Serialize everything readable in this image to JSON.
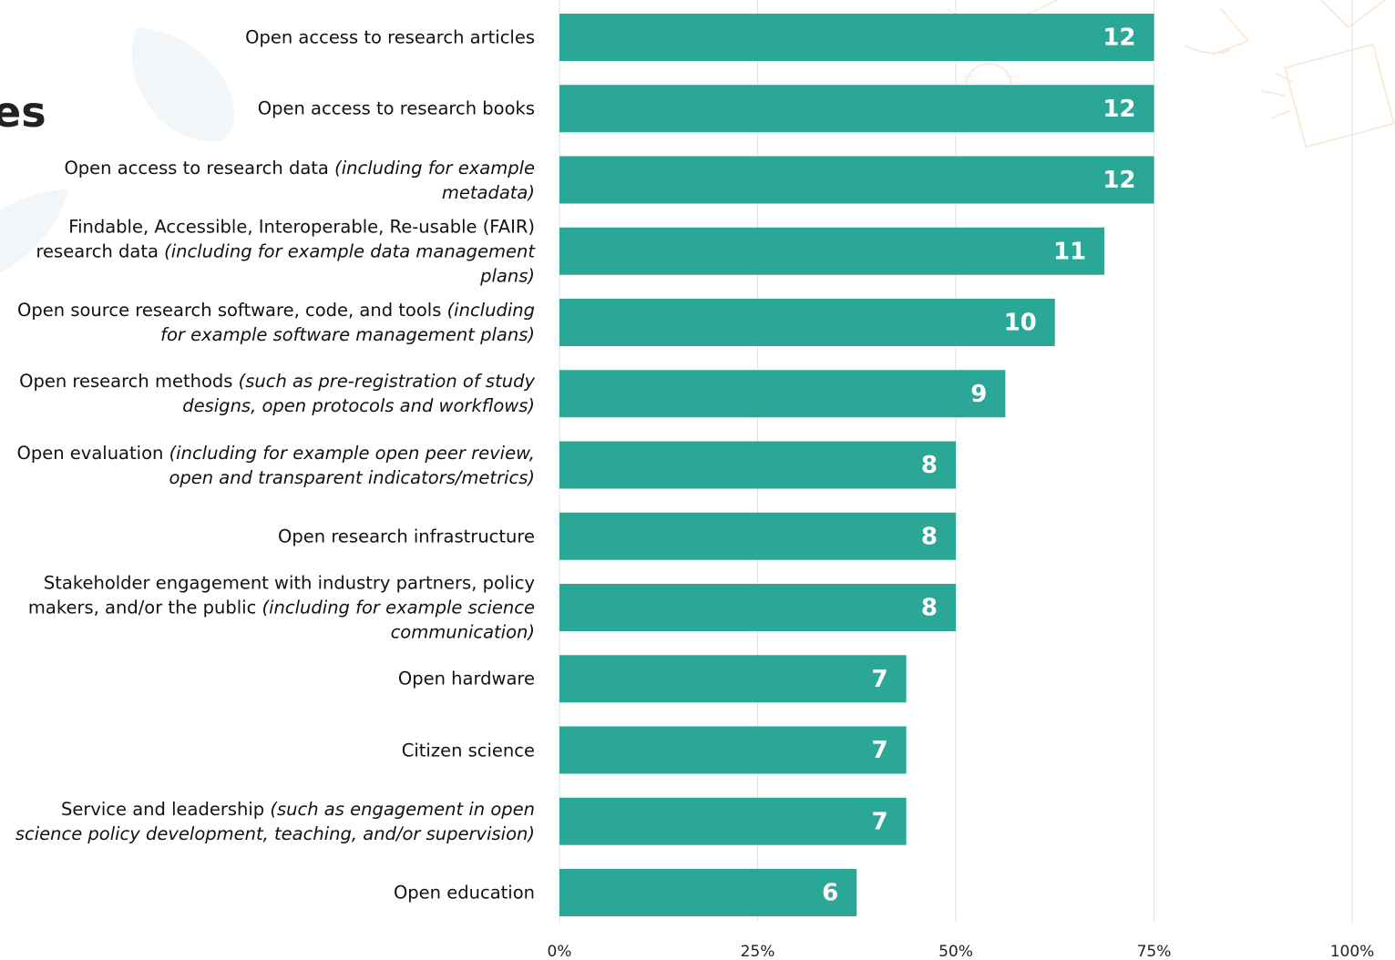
{
  "title": "es",
  "chart_data": {
    "type": "barh",
    "categories": [
      {
        "label": "Open access to research articles"
      },
      {
        "label": "Open access to research books"
      },
      {
        "label": "Open access to research data",
        "note": "(including for example metadata)"
      },
      {
        "label": "Findable, Accessible, Interoperable, Re-usable (FAIR) research data",
        "note": "(including for example data management plans)"
      },
      {
        "label": "Open source research software, code, and tools",
        "note": "(including for example software management plans)"
      },
      {
        "label": "Open research methods",
        "note": "(such as pre-registration of study designs, open protocols and workflows)"
      },
      {
        "label": "Open evaluation",
        "note": "(including for example open peer review, open and transparent indicators/metrics)"
      },
      {
        "label": "Open research infrastructure"
      },
      {
        "label": "Stakeholder engagement with industry partners, policy makers, and/or the public",
        "note": "(including for example science communication)"
      },
      {
        "label": "Open hardware"
      },
      {
        "label": "Citizen science"
      },
      {
        "label": "Service and leadership",
        "note": "(such as engagement in open science policy development, teaching, and/or supervision)"
      },
      {
        "label": "Open education"
      }
    ],
    "values": [
      75,
      75,
      75,
      68.75,
      62.5,
      56.25,
      50,
      50,
      50,
      43.75,
      43.75,
      43.75,
      37.5
    ],
    "value_labels": [
      "12",
      "12",
      "12",
      "11",
      "10",
      "9",
      "8",
      "8",
      "8",
      "7",
      "7",
      "7",
      "6"
    ],
    "color": "#2ba797",
    "xlim": [
      0,
      100
    ],
    "xticks": [
      {
        "value": 0,
        "label": "0%"
      },
      {
        "value": 25,
        "label": "25%"
      },
      {
        "value": 50,
        "label": "50%"
      },
      {
        "value": 75,
        "label": "75%"
      },
      {
        "value": 100,
        "label": "100%"
      }
    ],
    "grid": true
  }
}
